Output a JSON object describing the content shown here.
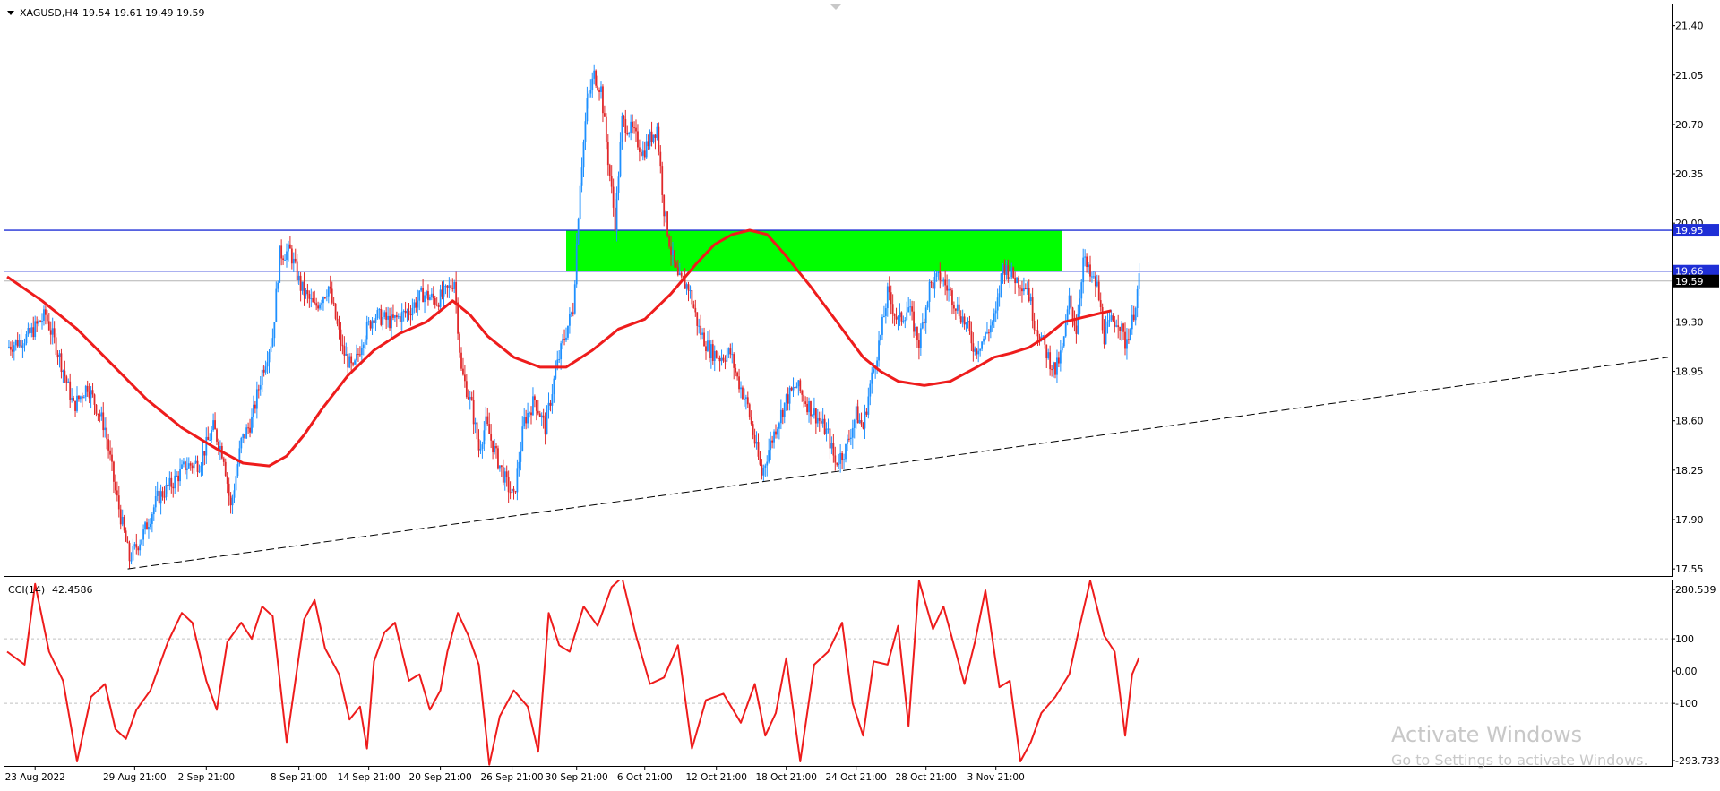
{
  "symbol_header": {
    "symbol": "XAGUSD,H4",
    "ohlc": "19.54 19.61 19.49 19.59"
  },
  "indicator_header": {
    "name": "CCI(14)",
    "value": "42.4586"
  },
  "watermark": {
    "line1": "Activate Windows",
    "line2": "Go to Settings to activate Windows."
  },
  "colors": {
    "bull": "#1e90ff",
    "bear": "#e0282a",
    "ma": "#ee1c1c",
    "zone": "#00ff00",
    "level_line": "#1f2fd6",
    "cci": "#ee1c1c",
    "trendline": "#000000"
  },
  "chart_data": [
    {
      "type": "candlestick",
      "symbol": "XAGUSD",
      "timeframe": "H4",
      "ylim": [
        17.5,
        21.55
      ],
      "y_ticks": [
        "21.40",
        "21.05",
        "20.70",
        "20.35",
        "20.00",
        "19.65",
        "19.30",
        "18.95",
        "18.60",
        "18.25",
        "17.90",
        "17.55"
      ],
      "x_labels": [
        "23 Aug 2022",
        "29 Aug 21:00",
        "2 Sep 21:00",
        "8 Sep 21:00",
        "14 Sep 21:00",
        "20 Sep 21:00",
        "26 Sep 21:00",
        "30 Sep 21:00",
        "6 Oct 21:00",
        "12 Oct 21:00",
        "18 Oct 21:00",
        "24 Oct 21:00",
        "28 Oct 21:00",
        "3 Nov 21:00"
      ],
      "price_tags": [
        {
          "label": "19.95",
          "value": 19.95,
          "style": "level"
        },
        {
          "label": "19.66",
          "value": 19.66,
          "style": "level"
        },
        {
          "label": "19.59",
          "value": 19.59,
          "style": "current"
        }
      ],
      "horizontal_levels": [
        19.95,
        19.66
      ],
      "zone": {
        "from": 19.66,
        "to": 19.95,
        "start_label": "30 Sep 21:00",
        "end_label": "3 Nov 21:00"
      },
      "close_path": [
        [
          0,
          19.12
        ],
        [
          12,
          19.2
        ],
        [
          22,
          19.35
        ],
        [
          30,
          19.05
        ],
        [
          38,
          18.7
        ],
        [
          46,
          18.85
        ],
        [
          56,
          18.55
        ],
        [
          62,
          18.1
        ],
        [
          70,
          17.62
        ],
        [
          78,
          17.8
        ],
        [
          86,
          18.05
        ],
        [
          94,
          18.15
        ],
        [
          102,
          18.28
        ],
        [
          110,
          18.3
        ],
        [
          118,
          18.55
        ],
        [
          124,
          18.35
        ],
        [
          128,
          17.98
        ],
        [
          134,
          18.45
        ],
        [
          140,
          18.6
        ],
        [
          146,
          18.95
        ],
        [
          152,
          19.2
        ],
        [
          156,
          19.78
        ],
        [
          162,
          19.8
        ],
        [
          168,
          19.55
        ],
        [
          176,
          19.4
        ],
        [
          184,
          19.55
        ],
        [
          192,
          19.1
        ],
        [
          198,
          18.95
        ],
        [
          204,
          19.2
        ],
        [
          210,
          19.35
        ],
        [
          220,
          19.3
        ],
        [
          230,
          19.38
        ],
        [
          238,
          19.5
        ],
        [
          246,
          19.45
        ],
        [
          252,
          19.52
        ],
        [
          256,
          19.6
        ],
        [
          260,
          18.95
        ],
        [
          266,
          18.7
        ],
        [
          270,
          18.4
        ],
        [
          274,
          18.58
        ],
        [
          280,
          18.35
        ],
        [
          286,
          18.15
        ],
        [
          290,
          18.05
        ],
        [
          296,
          18.6
        ],
        [
          302,
          18.75
        ],
        [
          308,
          18.55
        ],
        [
          314,
          18.95
        ],
        [
          318,
          19.15
        ],
        [
          324,
          19.4
        ],
        [
          328,
          20.3
        ],
        [
          332,
          20.85
        ],
        [
          336,
          21.05
        ],
        [
          340,
          20.95
        ],
        [
          344,
          20.45
        ],
        [
          348,
          20.0
        ],
        [
          352,
          20.72
        ],
        [
          358,
          20.65
        ],
        [
          364,
          20.5
        ],
        [
          368,
          20.6
        ],
        [
          372,
          20.68
        ],
        [
          376,
          20.1
        ],
        [
          380,
          19.8
        ],
        [
          384,
          19.6
        ],
        [
          390,
          19.55
        ],
        [
          396,
          19.25
        ],
        [
          402,
          19.1
        ],
        [
          408,
          19.05
        ],
        [
          414,
          19.08
        ],
        [
          418,
          18.9
        ],
        [
          424,
          18.7
        ],
        [
          428,
          18.45
        ],
        [
          432,
          18.22
        ],
        [
          436,
          18.4
        ],
        [
          440,
          18.55
        ],
        [
          446,
          18.75
        ],
        [
          452,
          18.85
        ],
        [
          458,
          18.72
        ],
        [
          464,
          18.62
        ],
        [
          470,
          18.5
        ],
        [
          474,
          18.3
        ],
        [
          480,
          18.4
        ],
        [
          486,
          18.65
        ],
        [
          490,
          18.55
        ],
        [
          494,
          18.85
        ],
        [
          500,
          19.2
        ],
        [
          504,
          19.5
        ],
        [
          510,
          19.3
        ],
        [
          516,
          19.4
        ],
        [
          522,
          19.15
        ],
        [
          528,
          19.55
        ],
        [
          534,
          19.62
        ],
        [
          540,
          19.5
        ],
        [
          546,
          19.35
        ],
        [
          550,
          19.25
        ],
        [
          554,
          19.1
        ],
        [
          560,
          19.2
        ],
        [
          566,
          19.35
        ],
        [
          570,
          19.7
        ],
        [
          576,
          19.62
        ],
        [
          580,
          19.58
        ],
        [
          584,
          19.55
        ],
        [
          588,
          19.3
        ],
        [
          592,
          19.18
        ],
        [
          596,
          19.05
        ],
        [
          600,
          18.95
        ],
        [
          604,
          19.1
        ],
        [
          608,
          19.45
        ],
        [
          612,
          19.25
        ],
        [
          616,
          19.75
        ],
        [
          620,
          19.62
        ],
        [
          624,
          19.55
        ],
        [
          628,
          19.2
        ],
        [
          632,
          19.3
        ],
        [
          636,
          19.32
        ],
        [
          640,
          19.15
        ],
        [
          644,
          19.3
        ],
        [
          648,
          19.59
        ]
      ],
      "ma_path": [
        [
          0,
          19.62
        ],
        [
          20,
          19.45
        ],
        [
          40,
          19.25
        ],
        [
          60,
          19.0
        ],
        [
          80,
          18.75
        ],
        [
          100,
          18.55
        ],
        [
          120,
          18.4
        ],
        [
          135,
          18.3
        ],
        [
          150,
          18.28
        ],
        [
          160,
          18.35
        ],
        [
          170,
          18.5
        ],
        [
          180,
          18.68
        ],
        [
          195,
          18.92
        ],
        [
          210,
          19.1
        ],
        [
          225,
          19.22
        ],
        [
          240,
          19.3
        ],
        [
          255,
          19.45
        ],
        [
          265,
          19.35
        ],
        [
          275,
          19.2
        ],
        [
          290,
          19.05
        ],
        [
          305,
          18.98
        ],
        [
          320,
          18.98
        ],
        [
          335,
          19.1
        ],
        [
          350,
          19.25
        ],
        [
          365,
          19.32
        ],
        [
          380,
          19.5
        ],
        [
          395,
          19.72
        ],
        [
          405,
          19.85
        ],
        [
          415,
          19.92
        ],
        [
          425,
          19.95
        ],
        [
          435,
          19.92
        ],
        [
          445,
          19.78
        ],
        [
          460,
          19.55
        ],
        [
          475,
          19.3
        ],
        [
          490,
          19.05
        ],
        [
          500,
          18.95
        ],
        [
          510,
          18.88
        ],
        [
          525,
          18.85
        ],
        [
          540,
          18.88
        ],
        [
          555,
          18.98
        ],
        [
          565,
          19.05
        ],
        [
          575,
          19.08
        ],
        [
          585,
          19.12
        ],
        [
          595,
          19.2
        ],
        [
          605,
          19.3
        ],
        [
          615,
          19.33
        ],
        [
          625,
          19.36
        ],
        [
          632,
          19.38
        ]
      ],
      "trendlines": [
        {
          "style": "dashed",
          "from_label": "29 Aug 21:00",
          "from_value": 17.55,
          "to_label": "end",
          "to_value": 19.05
        }
      ]
    },
    {
      "type": "line",
      "name": "CCI(14)",
      "ylim": [
        -293.733,
        280.539
      ],
      "y_ticks": [
        "280.539",
        "100",
        "0.00",
        "-100",
        "-293.733"
      ],
      "levels": [
        100,
        -100
      ],
      "last_value": 42.4586,
      "points": [
        [
          0,
          60
        ],
        [
          10,
          20
        ],
        [
          16,
          270
        ],
        [
          24,
          60
        ],
        [
          32,
          -30
        ],
        [
          40,
          -280
        ],
        [
          48,
          -80
        ],
        [
          56,
          -40
        ],
        [
          62,
          -180
        ],
        [
          68,
          -210
        ],
        [
          74,
          -120
        ],
        [
          82,
          -60
        ],
        [
          92,
          90
        ],
        [
          100,
          180
        ],
        [
          106,
          150
        ],
        [
          114,
          -30
        ],
        [
          120,
          -120
        ],
        [
          126,
          90
        ],
        [
          134,
          150
        ],
        [
          140,
          100
        ],
        [
          146,
          200
        ],
        [
          152,
          170
        ],
        [
          160,
          -220
        ],
        [
          170,
          160
        ],
        [
          176,
          220
        ],
        [
          182,
          70
        ],
        [
          190,
          -10
        ],
        [
          196,
          -150
        ],
        [
          202,
          -110
        ],
        [
          206,
          -240
        ],
        [
          210,
          30
        ],
        [
          216,
          120
        ],
        [
          222,
          150
        ],
        [
          230,
          -30
        ],
        [
          236,
          -10
        ],
        [
          242,
          -120
        ],
        [
          248,
          -60
        ],
        [
          252,
          60
        ],
        [
          258,
          180
        ],
        [
          264,
          110
        ],
        [
          270,
          20
        ],
        [
          276,
          -290
        ],
        [
          282,
          -140
        ],
        [
          290,
          -60
        ],
        [
          298,
          -110
        ],
        [
          304,
          -250
        ],
        [
          310,
          180
        ],
        [
          316,
          80
        ],
        [
          322,
          60
        ],
        [
          330,
          200
        ],
        [
          338,
          140
        ],
        [
          346,
          260
        ],
        [
          352,
          290
        ],
        [
          360,
          110
        ],
        [
          368,
          -40
        ],
        [
          376,
          -20
        ],
        [
          384,
          80
        ],
        [
          392,
          -240
        ],
        [
          400,
          -90
        ],
        [
          410,
          -70
        ],
        [
          420,
          -160
        ],
        [
          428,
          -40
        ],
        [
          434,
          -200
        ],
        [
          440,
          -130
        ],
        [
          446,
          40
        ],
        [
          454,
          -280
        ],
        [
          462,
          20
        ],
        [
          470,
          60
        ],
        [
          478,
          150
        ],
        [
          484,
          -100
        ],
        [
          490,
          -200
        ],
        [
          496,
          30
        ],
        [
          504,
          20
        ],
        [
          510,
          140
        ],
        [
          516,
          -170
        ],
        [
          522,
          280
        ],
        [
          530,
          130
        ],
        [
          536,
          200
        ],
        [
          542,
          80
        ],
        [
          548,
          -40
        ],
        [
          554,
          90
        ],
        [
          560,
          250
        ],
        [
          568,
          -50
        ],
        [
          574,
          -30
        ],
        [
          580,
          -280
        ],
        [
          586,
          -220
        ],
        [
          592,
          -130
        ],
        [
          600,
          -80
        ],
        [
          608,
          -10
        ],
        [
          614,
          140
        ],
        [
          620,
          280
        ],
        [
          628,
          110
        ],
        [
          634,
          60
        ],
        [
          640,
          -200
        ],
        [
          644,
          -10
        ],
        [
          648,
          42
        ]
      ]
    }
  ]
}
